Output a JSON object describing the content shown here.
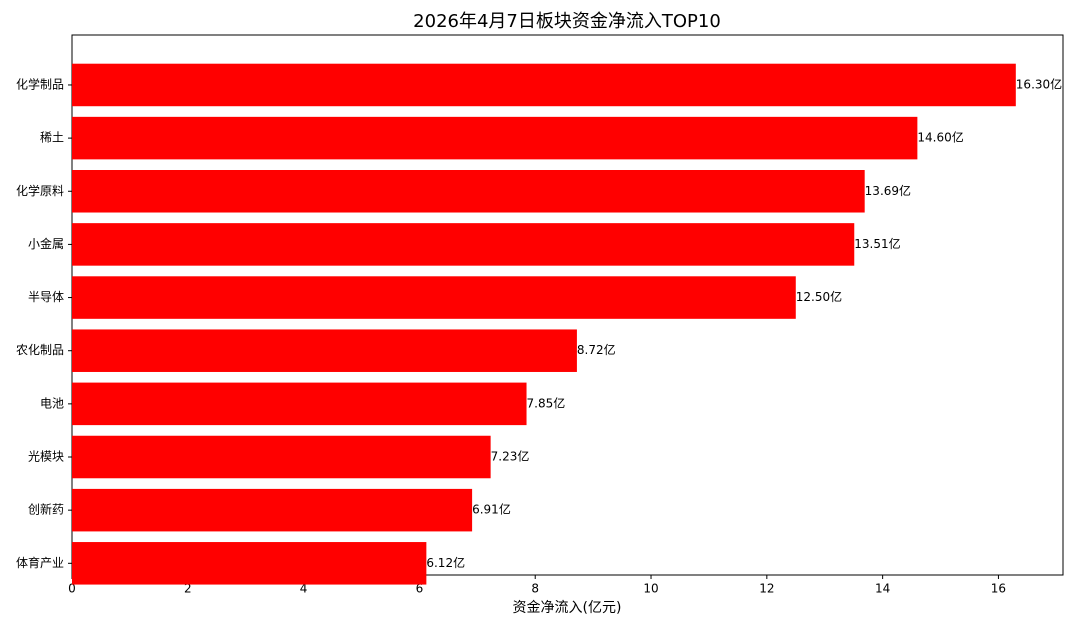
{
  "chart_data": {
    "type": "barh",
    "title": "2026年4月7日板块资金净流入TOP10",
    "x_label": "资金净流入(亿元)",
    "categories": [
      "化学制品",
      "稀土",
      "化学原料",
      "小金属",
      "半导体",
      "农化制品",
      "电池",
      "光模块",
      "创新药",
      "体育产业"
    ],
    "values": [
      16.3,
      14.6,
      13.69,
      13.51,
      12.5,
      8.72,
      7.85,
      7.23,
      6.91,
      6.12
    ],
    "value_labels": [
      "16.30亿",
      "14.60亿",
      "13.69亿",
      "13.51亿",
      "12.50亿",
      "8.72亿",
      "7.85亿",
      "7.23亿",
      "6.91亿",
      "6.12亿"
    ],
    "color": "#ff0000",
    "xlim": [
      0,
      17.115
    ],
    "xticks": [
      0,
      2,
      4,
      6,
      8,
      10,
      12,
      14,
      16
    ],
    "grid": false
  }
}
